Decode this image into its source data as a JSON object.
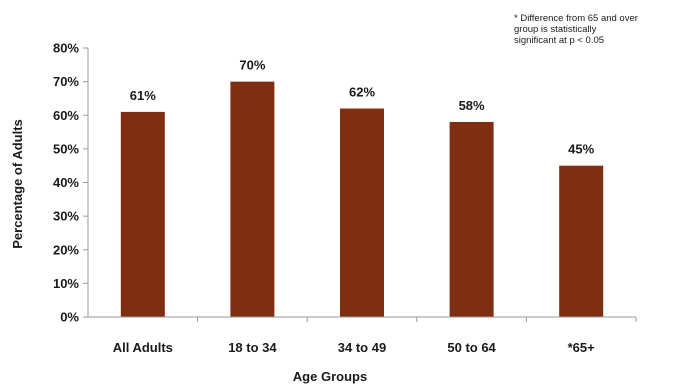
{
  "chart_data": {
    "type": "bar",
    "categories": [
      "All Adults",
      "18 to 34",
      "34 to 49",
      "50 to 64",
      "*65+"
    ],
    "values": [
      61,
      70,
      62,
      58,
      45
    ],
    "data_labels": [
      "61%",
      "70%",
      "62%",
      "58%",
      "45%"
    ],
    "xlabel": "Age Groups",
    "ylabel": "Percentage of Adults",
    "ylim": [
      0,
      80
    ],
    "yticks": [
      0,
      10,
      20,
      30,
      40,
      50,
      60,
      70,
      80
    ],
    "ytick_labels": [
      "0%",
      "10%",
      "20%",
      "30%",
      "40%",
      "50%",
      "60%",
      "70%",
      "80%"
    ],
    "annotation": [
      "* Difference from 65 and over",
      "group is statistically",
      "significant at p < 0.05"
    ],
    "grid": false,
    "legend": "none",
    "bar_color": "#7f2f10"
  }
}
